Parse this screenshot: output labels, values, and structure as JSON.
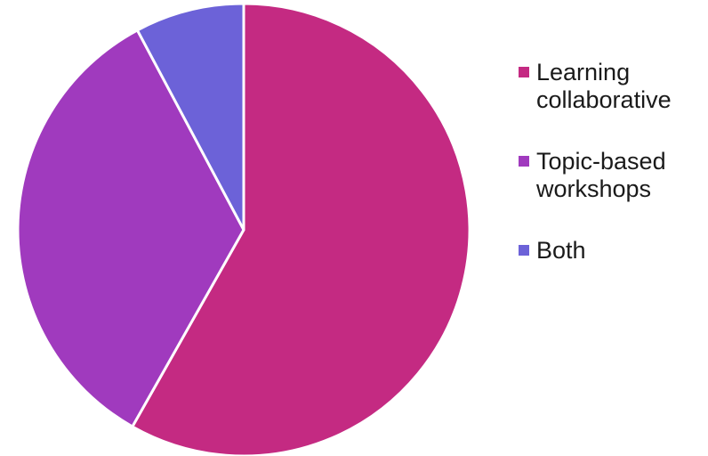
{
  "chart_data": {
    "type": "pie",
    "title": "",
    "legend_position": "right",
    "slices": [
      {
        "label": "Learning collaborative",
        "label_lines": [
          "Learning",
          "collaborative"
        ],
        "value": 58.2,
        "color": "#C42A82"
      },
      {
        "label": "Topic-based workshops",
        "label_lines": [
          "Topic-based",
          "workshops"
        ],
        "value": 34.0,
        "color": "#A03ABE"
      },
      {
        "label": "Both",
        "label_lines": [
          "Both"
        ],
        "value": 7.8,
        "color": "#6C62D8"
      }
    ]
  }
}
